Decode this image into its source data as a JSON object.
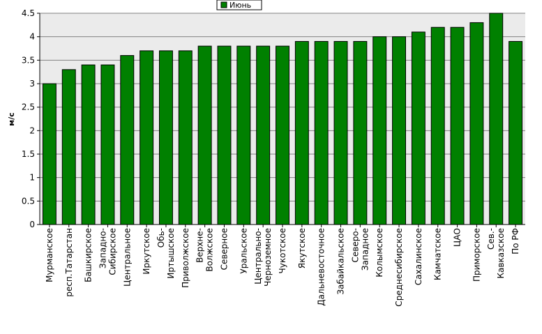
{
  "chart_data": {
    "type": "bar",
    "ylabel": "м/с",
    "ylim": [
      0,
      4.5
    ],
    "yticks": [
      "0",
      "0.5",
      "1",
      "1.5",
      "2",
      "2.5",
      "3",
      "3.5",
      "4",
      "4.5"
    ],
    "grid": true,
    "legend_position": "top-center",
    "series": [
      {
        "name": "Июнь",
        "color": "#008000",
        "values": [
          3.0,
          3.3,
          3.4,
          3.4,
          3.6,
          3.7,
          3.7,
          3.7,
          3.8,
          3.8,
          3.8,
          3.8,
          3.8,
          3.9,
          3.9,
          3.9,
          3.9,
          4.0,
          4.0,
          4.1,
          4.2,
          4.2,
          4.3,
          4.5,
          3.9
        ]
      }
    ],
    "categories": [
      [
        "Мурманское"
      ],
      [
        "респ.Татарстан"
      ],
      [
        "Башкирское"
      ],
      [
        "Западно-",
        "Сибирское"
      ],
      [
        "Центральное"
      ],
      [
        "Иркутское"
      ],
      [
        "Обь-",
        "Иртышское"
      ],
      [
        "Приволжское"
      ],
      [
        "Верхне-",
        "Волжское"
      ],
      [
        "Северное"
      ],
      [
        "Уральское"
      ],
      [
        "Центрально-",
        "Черноземное"
      ],
      [
        "Чукотское"
      ],
      [
        "Якутское"
      ],
      [
        "Дальневосточное"
      ],
      [
        "Забайкальское"
      ],
      [
        "Северо-",
        "Западное"
      ],
      [
        "Колымское"
      ],
      [
        "Среднесибирское"
      ],
      [
        "Сахалинское"
      ],
      [
        "Камчатское"
      ],
      [
        "ЦАО"
      ],
      [
        "Приморское"
      ],
      [
        "Сев.-",
        "Кавказское"
      ],
      [
        "По РФ"
      ]
    ]
  }
}
